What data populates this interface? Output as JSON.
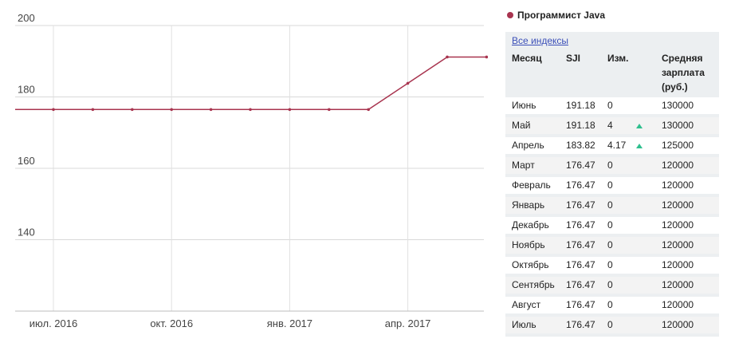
{
  "chart_data": {
    "type": "line",
    "title": "",
    "xlabel": "",
    "ylabel": "",
    "ylim": [
      120,
      200
    ],
    "yticks": [
      140,
      160,
      180,
      200
    ],
    "xticks": [
      {
        "x": "2016-07",
        "label": "июл. 2016"
      },
      {
        "x": "2016-10",
        "label": "окт. 2016"
      },
      {
        "x": "2017-01",
        "label": "янв. 2017"
      },
      {
        "x": "2017-04",
        "label": "апр. 2017"
      }
    ],
    "x": [
      "2016-07",
      "2016-08",
      "2016-09",
      "2016-10",
      "2016-11",
      "2016-12",
      "2017-01",
      "2017-02",
      "2017-03",
      "2017-04",
      "2017-05",
      "2017-06"
    ],
    "series": [
      {
        "name": "Программист Java",
        "color": "#a8344f",
        "values": [
          176.47,
          176.47,
          176.47,
          176.47,
          176.47,
          176.47,
          176.47,
          176.47,
          176.47,
          183.82,
          191.18,
          191.18
        ]
      }
    ],
    "grid": true
  },
  "legend": {
    "label": "Программист Java",
    "color": "#a8344f"
  },
  "table": {
    "link": "Все индексы",
    "headers": {
      "month": "Месяц",
      "sji": "SJI",
      "change": "Изм.",
      "salary": "Средняя зарплата (руб.)"
    },
    "rows": [
      {
        "month": "Июнь",
        "sji": "191.18",
        "change": "0",
        "up": false,
        "salary": "130000"
      },
      {
        "month": "Май",
        "sji": "191.18",
        "change": "4",
        "up": true,
        "salary": "130000"
      },
      {
        "month": "Апрель",
        "sji": "183.82",
        "change": "4.17",
        "up": true,
        "salary": "125000"
      },
      {
        "month": "Март",
        "sji": "176.47",
        "change": "0",
        "up": false,
        "salary": "120000"
      },
      {
        "month": "Февраль",
        "sji": "176.47",
        "change": "0",
        "up": false,
        "salary": "120000"
      },
      {
        "month": "Январь",
        "sji": "176.47",
        "change": "0",
        "up": false,
        "salary": "120000"
      },
      {
        "month": "Декабрь",
        "sji": "176.47",
        "change": "0",
        "up": false,
        "salary": "120000"
      },
      {
        "month": "Ноябрь",
        "sji": "176.47",
        "change": "0",
        "up": false,
        "salary": "120000"
      },
      {
        "month": "Октябрь",
        "sji": "176.47",
        "change": "0",
        "up": false,
        "salary": "120000"
      },
      {
        "month": "Сентябрь",
        "sji": "176.47",
        "change": "0",
        "up": false,
        "salary": "120000"
      },
      {
        "month": "Август",
        "sji": "176.47",
        "change": "0",
        "up": false,
        "salary": "120000"
      },
      {
        "month": "Июль",
        "sji": "176.47",
        "change": "0",
        "up": false,
        "salary": "120000"
      }
    ]
  }
}
